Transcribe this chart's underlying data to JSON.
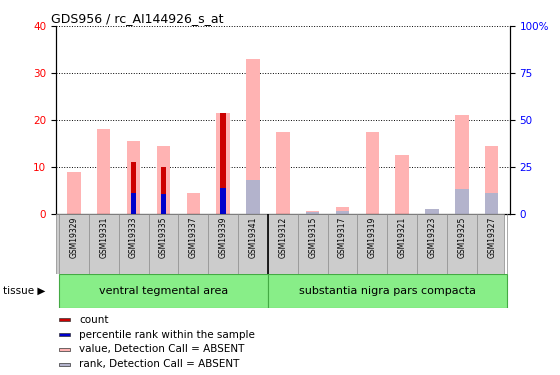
{
  "title": "GDS956 / rc_AI144926_s_at",
  "samples": [
    "GSM19329",
    "GSM19331",
    "GSM19333",
    "GSM19335",
    "GSM19337",
    "GSM19339",
    "GSM19341",
    "GSM19312",
    "GSM19315",
    "GSM19317",
    "GSM19319",
    "GSM19321",
    "GSM19323",
    "GSM19325",
    "GSM19327"
  ],
  "group1_label": "ventral tegmental area",
  "group2_label": "substantia nigra pars compacta",
  "group1_count": 7,
  "group2_count": 8,
  "value_absent": [
    9.0,
    18.0,
    15.5,
    14.5,
    4.5,
    21.5,
    33.0,
    17.5,
    0.5,
    1.5,
    17.5,
    12.5,
    1.0,
    21.0,
    14.5
  ],
  "rank_absent": [
    0.0,
    0.0,
    0.0,
    0.0,
    0.0,
    0.0,
    18.0,
    0.0,
    1.0,
    1.5,
    0.0,
    0.0,
    2.5,
    13.0,
    11.0
  ],
  "count": [
    0.0,
    0.0,
    11.0,
    10.0,
    0.0,
    21.5,
    0.0,
    0.0,
    0.0,
    0.0,
    0.0,
    0.0,
    0.0,
    0.0,
    0.0
  ],
  "pct_rank": [
    0.0,
    0.0,
    11.0,
    10.5,
    0.0,
    13.5,
    0.0,
    0.0,
    0.0,
    0.0,
    0.0,
    0.0,
    0.0,
    0.0,
    0.0
  ],
  "ylim_left": [
    0,
    40
  ],
  "ylim_right": [
    0,
    100
  ],
  "yticks_left": [
    0,
    10,
    20,
    30,
    40
  ],
  "yticks_right": [
    0,
    25,
    50,
    75,
    100
  ],
  "color_count": "#cc0000",
  "color_pct_rank": "#0000cc",
  "color_value_absent": "#ffb3b3",
  "color_rank_absent": "#b3b3cc",
  "color_group_bg": "#88ee88",
  "color_xticklabels_bg": "#cccccc",
  "legend_items": [
    "count",
    "percentile rank within the sample",
    "value, Detection Call = ABSENT",
    "rank, Detection Call = ABSENT"
  ]
}
